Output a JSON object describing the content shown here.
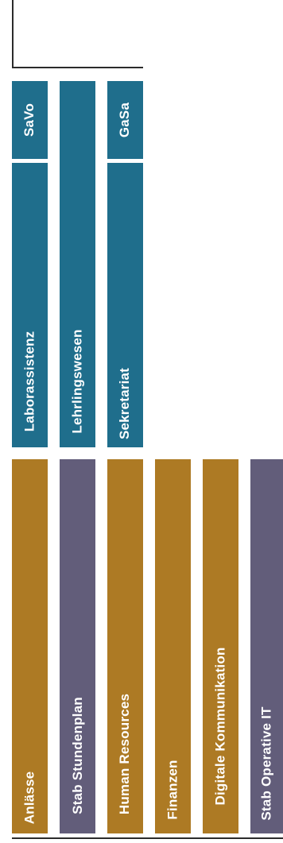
{
  "top_group": {
    "short_codes": [
      "SaVo",
      "GaSa"
    ],
    "units": [
      "Laborassistenz",
      "Lehrlingswesen",
      "Sekretariat"
    ]
  },
  "bottom_group": {
    "units": [
      "Anlässe",
      "Stab Stundenplan",
      "Human Resources",
      "Finanzen",
      "Digitale Kommunikation",
      "Stab Operative IT"
    ]
  },
  "colors": {
    "teal": "#1f6e8c",
    "gold": "#ad7a24",
    "purple": "#625d7a",
    "line": "#2b2b2b"
  }
}
